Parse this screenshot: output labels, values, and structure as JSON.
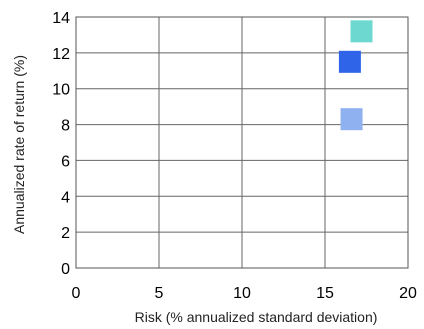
{
  "chart_data": {
    "type": "scatter",
    "title": "",
    "xlabel": "Risk (% annualized standard deviation)",
    "ylabel": "Annualized rate of return (%)",
    "xlim": [
      0,
      20
    ],
    "ylim": [
      0,
      14
    ],
    "xticks": [
      0,
      5,
      10,
      15,
      20
    ],
    "yticks": [
      0,
      2,
      4,
      6,
      8,
      10,
      12,
      14
    ],
    "grid": true,
    "points": [
      {
        "x": 17.2,
        "y": 13.2,
        "color": "#6dd8cf"
      },
      {
        "x": 16.5,
        "y": 11.5,
        "color": "#2f63e8"
      },
      {
        "x": 16.6,
        "y": 8.3,
        "color": "#8fb1ef"
      }
    ]
  }
}
